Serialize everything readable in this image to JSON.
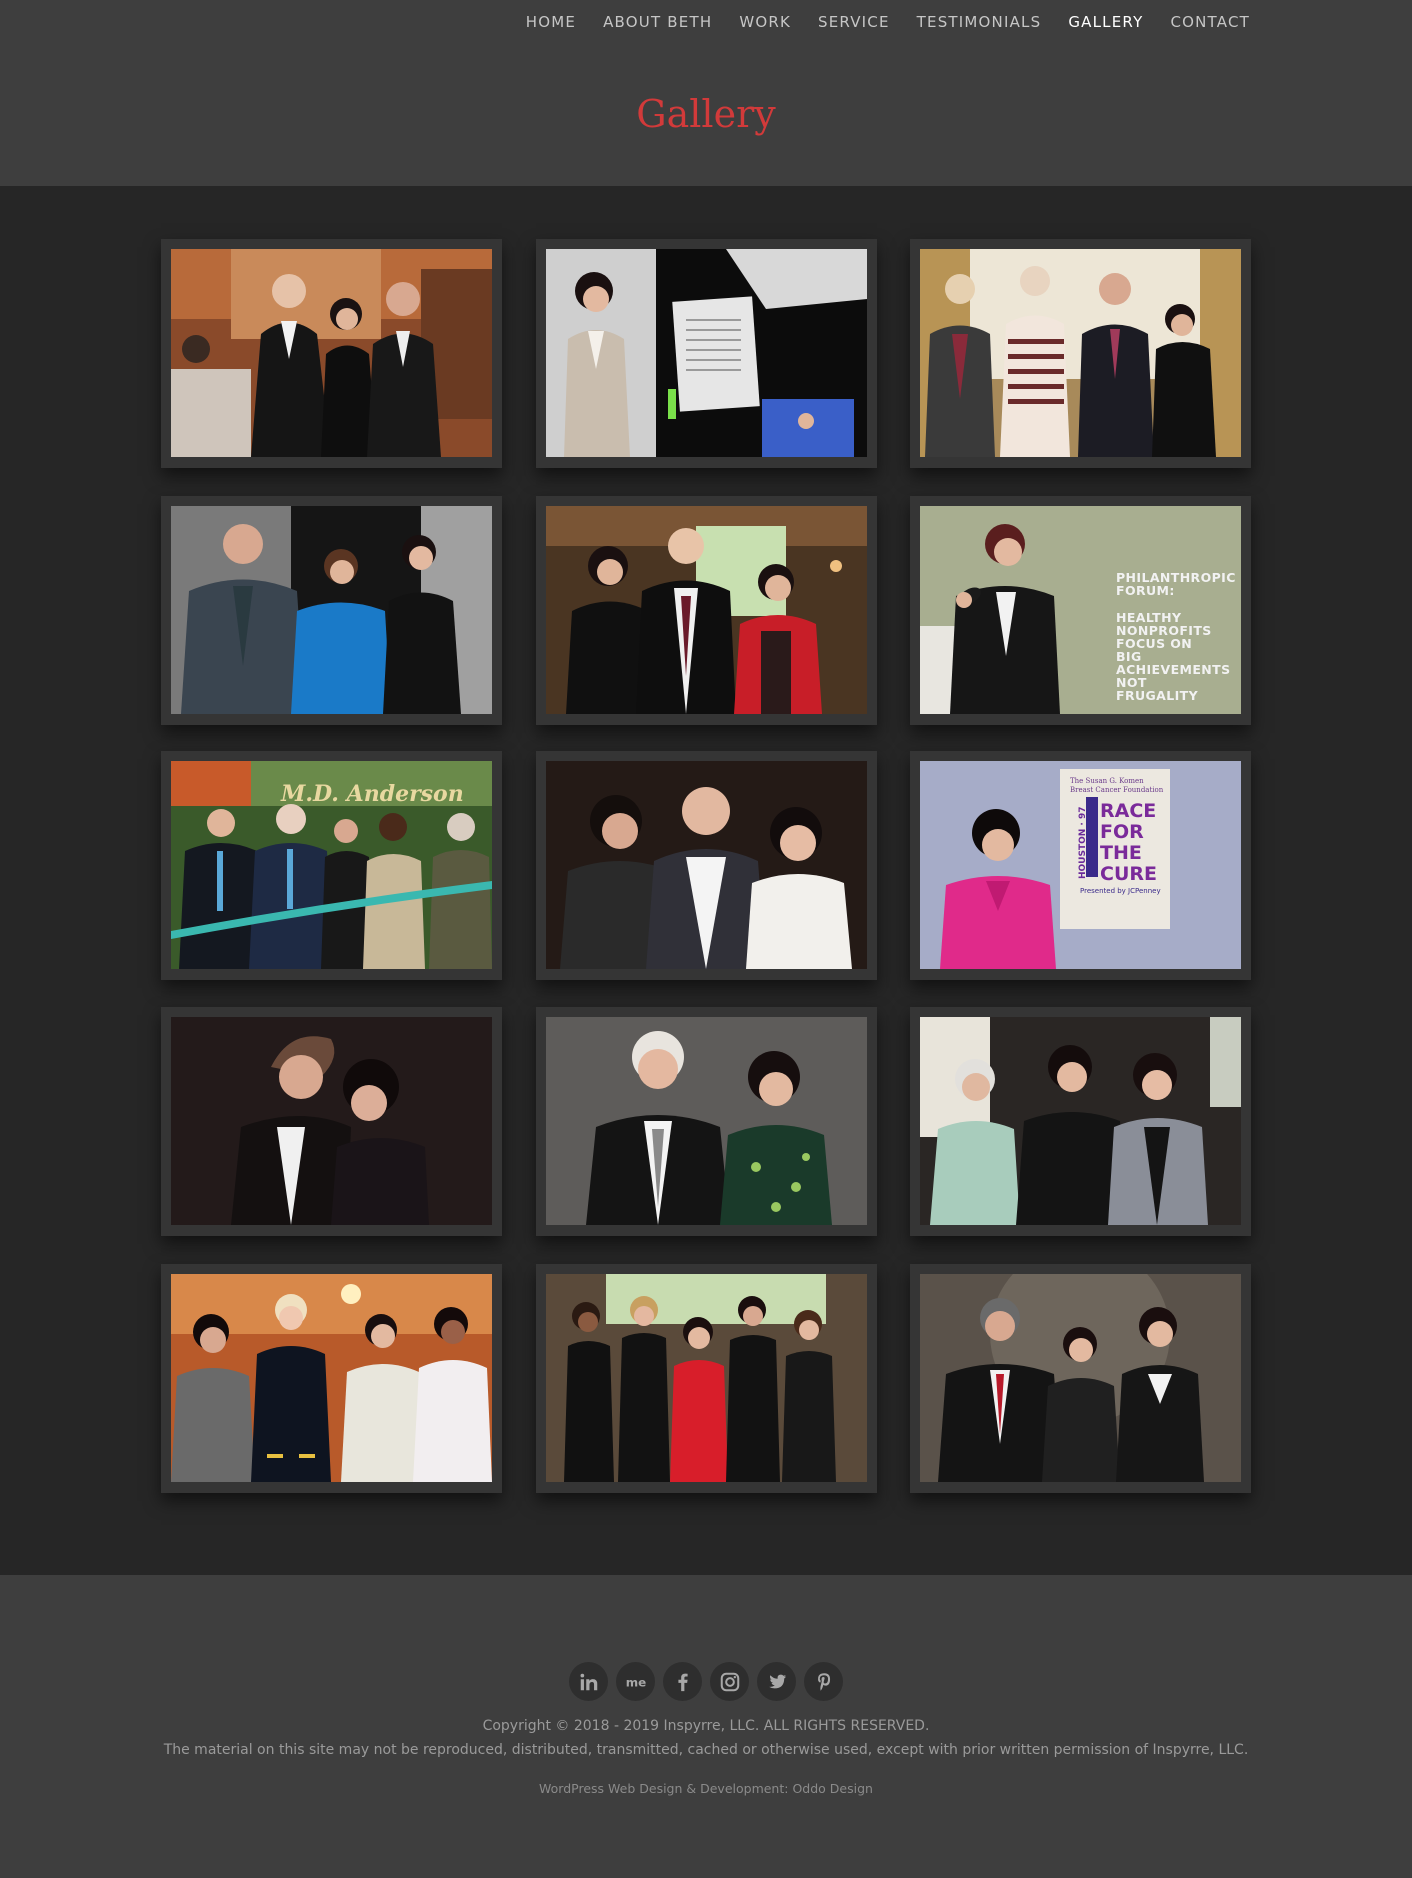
{
  "nav": {
    "items": [
      {
        "label": "HOME",
        "active": false
      },
      {
        "label": "ABOUT BETH",
        "active": false
      },
      {
        "label": "WORK",
        "active": false
      },
      {
        "label": "SERVICE",
        "active": false
      },
      {
        "label": "TESTIMONIALS",
        "active": false
      },
      {
        "label": "GALLERY",
        "active": true
      },
      {
        "label": "CONTACT",
        "active": false
      }
    ]
  },
  "page": {
    "title": "Gallery"
  },
  "colors": {
    "accent": "#d23a3a",
    "header_bg": "#3e3e3e",
    "body_bg": "#262626",
    "tile_frame": "#353535"
  },
  "gallery": {
    "photo_6_overlay": {
      "heading": [
        "PHILANTHROPIC",
        "FORUM:"
      ],
      "body": [
        "HEALTHY",
        "NONPROFITS",
        "FOCUS ON",
        "BIG",
        "ACHIEVEMENTS",
        "NOT",
        "FRUGALITY"
      ]
    },
    "photo_7_banner": "M.D. Anderson",
    "photo_9_poster": {
      "org": [
        "The Susan G. Komen",
        "Breast Cancer Foundation"
      ],
      "side": "HOUSTON · 97",
      "headline": [
        "RACE",
        "FOR",
        "THE",
        "CURE"
      ],
      "sponsor": "Presented by JCPenney"
    }
  },
  "footer": {
    "social": [
      {
        "icon": "linkedin-icon",
        "label": "in"
      },
      {
        "icon": "aboutme-icon",
        "label": "me"
      },
      {
        "icon": "facebook-icon",
        "label": "f"
      },
      {
        "icon": "instagram-icon",
        "label": ""
      },
      {
        "icon": "twitter-icon",
        "label": ""
      },
      {
        "icon": "pinterest-icon",
        "label": "p"
      }
    ],
    "copyright": "Copyright © 2018 - 2019 Inspyrre, LLC. ALL RIGHTS RESERVED.",
    "notice": "The material on this site may not be reproduced, distributed, transmitted, cached or otherwise used, except with prior written permission of Inspyrre, LLC.",
    "credit_prefix": "WordPress Web Design & Development: ",
    "credit_link": "Oddo Design"
  }
}
